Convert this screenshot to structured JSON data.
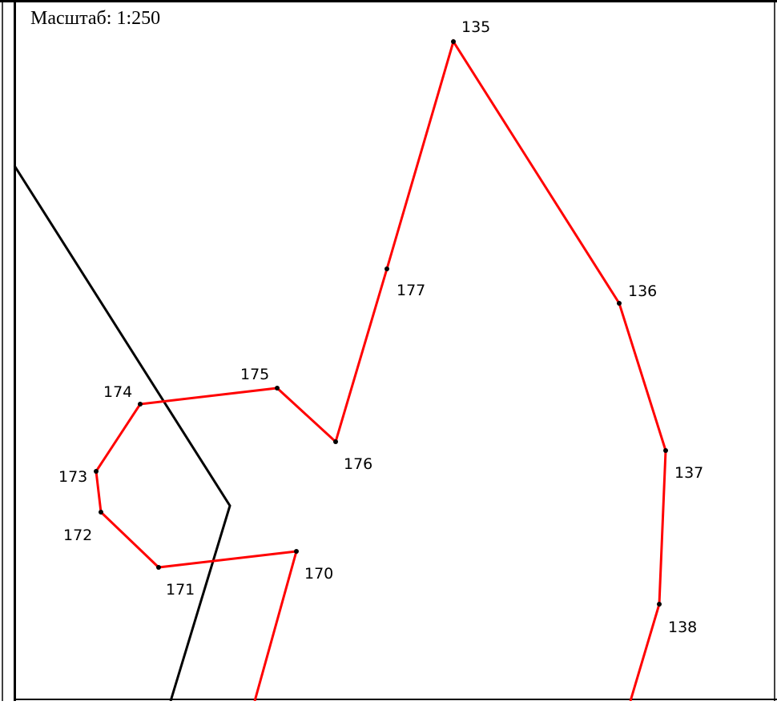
{
  "header": {
    "scale_label": "Масштаб: 1:250"
  },
  "colors": {
    "boundary": "#ff0000",
    "line": "#000000",
    "frame": "#000000"
  },
  "points": [
    {
      "id": "135",
      "label": "135"
    },
    {
      "id": "136",
      "label": "136"
    },
    {
      "id": "137",
      "label": "137"
    },
    {
      "id": "138",
      "label": "138"
    },
    {
      "id": "170",
      "label": "170"
    },
    {
      "id": "171",
      "label": "171"
    },
    {
      "id": "172",
      "label": "172"
    },
    {
      "id": "173",
      "label": "173"
    },
    {
      "id": "174",
      "label": "174"
    },
    {
      "id": "175",
      "label": "175"
    },
    {
      "id": "176",
      "label": "176"
    },
    {
      "id": "177",
      "label": "177"
    }
  ]
}
